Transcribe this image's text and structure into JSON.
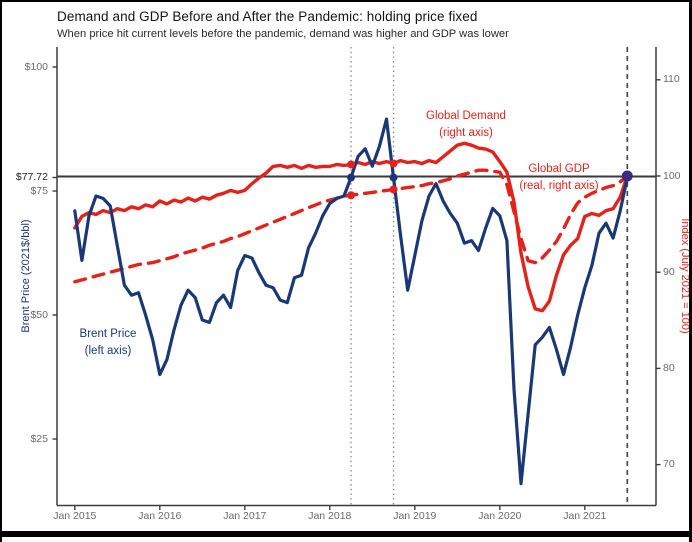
{
  "title": "Demand and GDP Before and After the Pandemic: holding price fixed",
  "subtitle": "When price hit current levels before the pandemic, demand was higher and GDP was lower",
  "annotations": {
    "demand": {
      "line1": "Global Demand",
      "line2": "(right axis)"
    },
    "gdp": {
      "line1": "Global GDP",
      "line2": "(real, right axis)"
    },
    "brent": {
      "line1": "Brent Price",
      "line2": "(left axis)"
    }
  },
  "colors": {
    "navy": "#1b3876",
    "red": "#e3231b",
    "purple": "#3e2a7d",
    "axis": "#3c3c3c",
    "ref_line": "#3a3a3a",
    "dotted_line": "#8a8a8a",
    "dashed_line": "#4a4a4a"
  },
  "chart_data": {
    "type": "line",
    "title": "Demand and GDP Before and After the Pandemic: holding price fixed",
    "subtitle": "When price hit current levels before the pandemic, demand was higher and GDP was lower",
    "x_start": "Jan 2015",
    "x_end": "Jul 2021",
    "frequency": "monthly",
    "grid": false,
    "left_axis": {
      "label": "Brent Price (2021$/bbl)",
      "range": [
        12,
        104
      ],
      "ticks": [
        {
          "label": "$100",
          "value": 100
        },
        {
          "label": "$75",
          "value": 75
        },
        {
          "label": "$50",
          "value": 50
        },
        {
          "label": "$25",
          "value": 25
        }
      ],
      "special_tick": {
        "label": "$77.72",
        "value": 77.72
      }
    },
    "right_axis": {
      "label": "Index (July 2021 = 100)",
      "range": [
        66,
        113
      ],
      "ticks": [
        {
          "label": "110",
          "value": 110
        },
        {
          "label": "100",
          "value": 100
        },
        {
          "label": "90",
          "value": 90
        },
        {
          "label": "80",
          "value": 80
        },
        {
          "label": "70",
          "value": 70
        }
      ]
    },
    "x_axis": {
      "ticks": [
        {
          "label": "Jan 2015",
          "month_index": 0
        },
        {
          "label": "Jan 2016",
          "month_index": 12
        },
        {
          "label": "Jan 2017",
          "month_index": 24
        },
        {
          "label": "Jan 2018",
          "month_index": 36
        },
        {
          "label": "Jan 2019",
          "month_index": 48
        },
        {
          "label": "Jan 2020",
          "month_index": 60
        },
        {
          "label": "Jan 2021",
          "month_index": 72
        }
      ]
    },
    "reference_line": {
      "left_value": 77.72,
      "right_value": 100
    },
    "vertical_lines": [
      {
        "month": "Apr 2018",
        "month_index": 39,
        "style": "dotted"
      },
      {
        "month": "Oct 2018",
        "month_index": 45,
        "style": "dotted"
      },
      {
        "month": "Jul 2021",
        "month_index": 78,
        "style": "dashed"
      }
    ],
    "series": [
      {
        "name": "Brent Price (left axis)",
        "axis": "left",
        "style": "solid",
        "color_key": "navy",
        "values": [
          71,
          61,
          70,
          74,
          73.5,
          72,
          64,
          56,
          54,
          54.5,
          50,
          45,
          38,
          41,
          47,
          52,
          55,
          53.5,
          49,
          48.5,
          52.5,
          54,
          51.5,
          59,
          62,
          61.5,
          58.5,
          56,
          55.5,
          53,
          52.5,
          57.5,
          58,
          63.5,
          66.5,
          70,
          72.5,
          73.5,
          74,
          77.72,
          82,
          83.5,
          80,
          84,
          89.5,
          77.72,
          66,
          55,
          62,
          69,
          74,
          76.5,
          73,
          70.5,
          68.5,
          64.5,
          65,
          63,
          67.5,
          71.5,
          70,
          65,
          35,
          16,
          30,
          44,
          45.5,
          47.5,
          43,
          38,
          43.5,
          50,
          55.5,
          60,
          66.5,
          68.5,
          65.5,
          71,
          77.72
        ]
      },
      {
        "name": "Global Demand (right axis)",
        "axis": "right",
        "style": "solid",
        "color_key": "red",
        "values": [
          94.6,
          95.8,
          96.2,
          96.0,
          96.4,
          96.2,
          96.6,
          96.4,
          96.8,
          96.6,
          97.0,
          96.8,
          97.4,
          97.1,
          97.5,
          97.3,
          97.7,
          97.4,
          97.8,
          97.6,
          98.0,
          98.2,
          98.5,
          98.3,
          98.5,
          99.2,
          99.8,
          100.3,
          101.0,
          101.1,
          100.9,
          101.1,
          100.8,
          101.1,
          100.9,
          101.0,
          101.0,
          101.2,
          101.1,
          101.2,
          101.4,
          101.2,
          101.5,
          101.3,
          101.5,
          101.3,
          101.6,
          101.4,
          101.5,
          101.3,
          101.6,
          101.4,
          102.0,
          102.6,
          103.2,
          103.4,
          103.2,
          102.9,
          102.8,
          102.5,
          101.5,
          100.4,
          97.3,
          92.0,
          88.5,
          86.2,
          86.0,
          87.0,
          89.7,
          91.8,
          92.8,
          93.5,
          95.8,
          96.1,
          95.9,
          96.4,
          96.6,
          97.8,
          100.0
        ]
      },
      {
        "name": "Global GDP (real, right axis)",
        "axis": "right",
        "style": "dashed",
        "color_key": "red",
        "values": [
          89.0,
          89.2,
          89.4,
          89.6,
          89.8,
          90.0,
          90.2,
          90.4,
          90.6,
          90.8,
          90.9,
          91.0,
          91.2,
          91.4,
          91.6,
          91.9,
          92.1,
          92.3,
          92.5,
          92.8,
          93.0,
          93.2,
          93.5,
          93.7,
          94.0,
          94.3,
          94.6,
          94.9,
          95.2,
          95.5,
          95.8,
          96.1,
          96.4,
          96.7,
          97.0,
          97.3,
          97.5,
          97.7,
          97.9,
          98.0,
          98.1,
          98.2,
          98.3,
          98.4,
          98.5,
          98.6,
          98.7,
          98.8,
          98.9,
          99.0,
          99.2,
          99.3,
          99.5,
          99.7,
          100.0,
          100.2,
          100.4,
          100.6,
          100.6,
          100.5,
          100.4,
          99.1,
          96.3,
          93.5,
          91.2,
          91.0,
          91.5,
          92.3,
          93.2,
          94.5,
          96.0,
          97.2,
          97.8,
          98.2,
          98.5,
          98.8,
          99.0,
          99.4,
          100.0
        ]
      }
    ],
    "markers": [
      {
        "month_index": 39,
        "axis": "left",
        "value": 77.72,
        "color_key": "navy",
        "r": 4
      },
      {
        "month_index": 45,
        "axis": "left",
        "value": 77.72,
        "color_key": "navy",
        "r": 4
      },
      {
        "month_index": 39,
        "axis": "right",
        "value": 101.2,
        "color_key": "red",
        "r": 4
      },
      {
        "month_index": 45,
        "axis": "right",
        "value": 101.3,
        "color_key": "red",
        "r": 4
      },
      {
        "month_index": 39,
        "axis": "right",
        "value": 98.0,
        "color_key": "red",
        "r": 4
      },
      {
        "month_index": 45,
        "axis": "right",
        "value": 98.6,
        "color_key": "red",
        "r": 4
      },
      {
        "month_index": 78,
        "axis": "right",
        "value": 100,
        "color_key": "purple",
        "r": 5.5
      }
    ]
  }
}
